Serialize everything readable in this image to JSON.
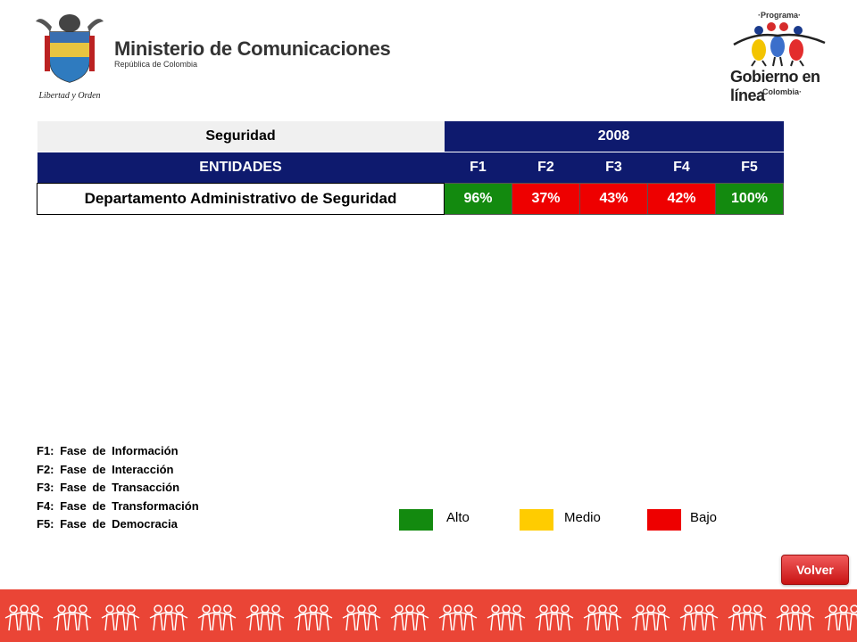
{
  "header": {
    "ministry_title": "Ministerio de Comunicaciones",
    "ministry_subtitle": "República de Colombia",
    "shield_motto": "Libertad y Orden",
    "program_top": "·Programa·",
    "program_main": "Gobierno en línea",
    "program_bottom": "·Colombia·"
  },
  "table": {
    "category": "Seguridad",
    "year": "2008",
    "entities_header": "ENTIDADES",
    "phase_headers": [
      "F1",
      "F2",
      "F3",
      "F4",
      "F5"
    ],
    "rows": [
      {
        "entity": "Departamento Administrativo de Seguridad",
        "values": [
          "96%",
          "37%",
          "43%",
          "42%",
          "100%"
        ],
        "levels": [
          "Alto",
          "Bajo",
          "Bajo",
          "Bajo",
          "Alto"
        ]
      }
    ]
  },
  "phase_legend": [
    "F1: Fase de Información",
    "F2: Fase de Interacción",
    "F3: Fase de Transacción",
    "F4: Fase de Transformación",
    "F5: Fase de Democracia"
  ],
  "color_legend": {
    "alto": "Alto",
    "medio": "Medio",
    "bajo": "Bajo",
    "colors": {
      "alto": "#138a0f",
      "medio": "#ffcc00",
      "bajo": "#ee0000"
    }
  },
  "volver_label": "Volver",
  "colors": {
    "header_blue": "#0e1a6e",
    "band_red": "#ea4536"
  }
}
